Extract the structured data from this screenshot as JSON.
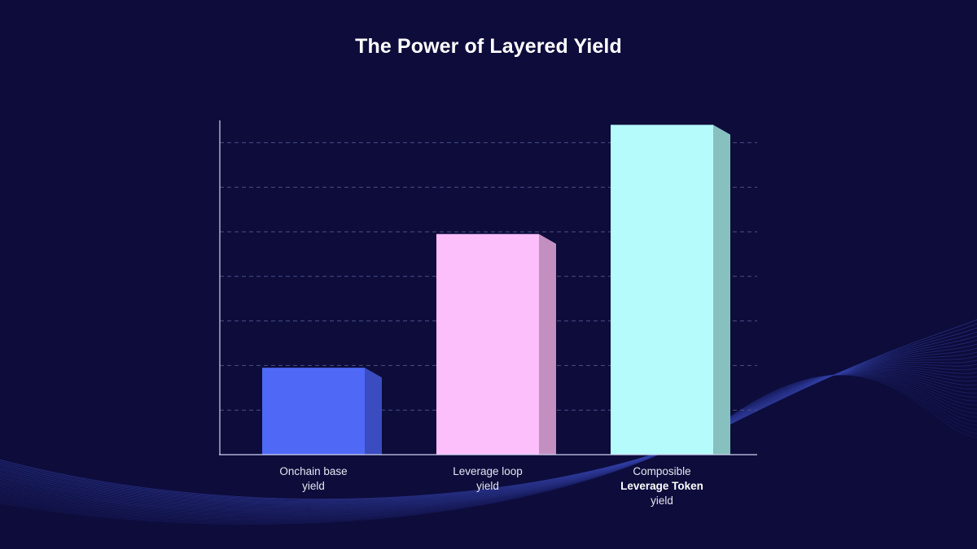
{
  "chart_data": {
    "type": "bar",
    "title": "The Power of Layered Yield",
    "xlabel": "",
    "ylabel": "",
    "ylim": [
      0,
      7.5
    ],
    "grid": true,
    "categories": [
      {
        "lines": [
          "Onchain base",
          "yield"
        ],
        "bold_line": -1
      },
      {
        "lines": [
          "Leverage loop",
          "yield"
        ],
        "bold_line": -1
      },
      {
        "lines": [
          "Composible",
          "Leverage Token",
          "yield"
        ],
        "bold_line": 1
      }
    ],
    "values": [
      1.95,
      4.95,
      7.4
    ],
    "colors": [
      "#4f69f6",
      "#fcbffc",
      "#b6fbfc"
    ],
    "side_colors": [
      "#3a4cbf",
      "#c38ec0",
      "#86c0bf"
    ],
    "gridline_values": [
      1,
      2,
      3,
      4,
      5,
      6,
      7
    ]
  }
}
